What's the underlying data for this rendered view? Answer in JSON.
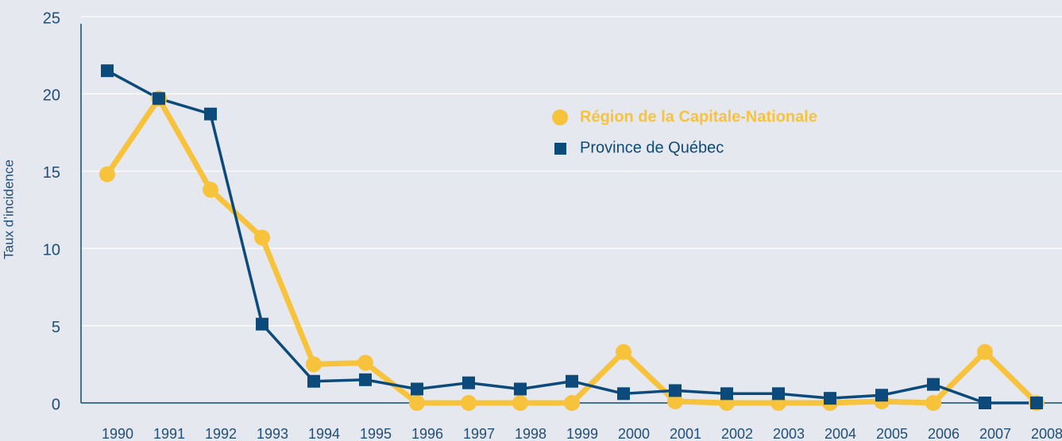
{
  "chart_data": {
    "type": "line",
    "y_label": "Taux d’incidence",
    "categories": [
      "1990",
      "1991",
      "1992",
      "1993",
      "1994",
      "1995",
      "1996",
      "1997",
      "1998",
      "1999",
      "2000",
      "2001",
      "2002",
      "2003",
      "2004",
      "2005",
      "2006",
      "2007",
      "2008"
    ],
    "series": [
      {
        "name": "Région de la Capitale-Nationale",
        "color": "#f7c33c",
        "marker": "circle",
        "values": [
          14.8,
          19.7,
          13.8,
          10.7,
          2.5,
          2.6,
          0,
          0,
          0,
          0,
          3.3,
          0.1,
          0,
          0,
          0,
          0.1,
          0,
          3.3,
          0
        ]
      },
      {
        "name": "Province de Québec",
        "color": "#0b4a7a",
        "marker": "square",
        "values": [
          21.5,
          19.7,
          18.7,
          5.1,
          1.4,
          1.5,
          0.9,
          1.3,
          0.9,
          1.4,
          0.6,
          0.8,
          0.6,
          0.6,
          0.3,
          0.5,
          1.2,
          0,
          0
        ]
      }
    ],
    "ylim": [
      0,
      25
    ],
    "yticks": [
      0,
      5,
      10,
      15,
      20,
      25
    ],
    "grid": true
  }
}
